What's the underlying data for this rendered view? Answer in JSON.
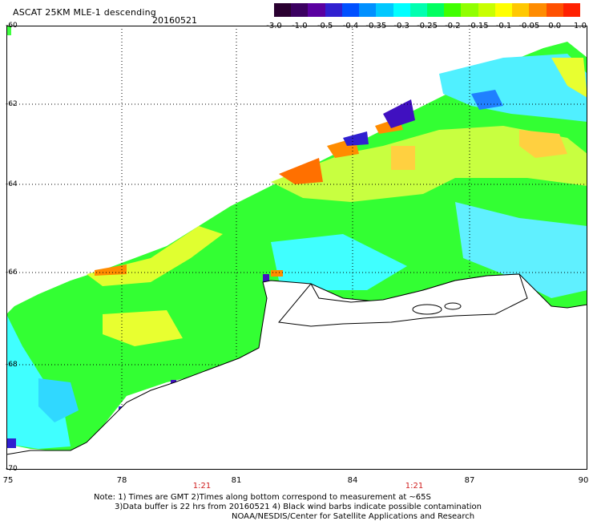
{
  "header": {
    "title": "ASCAT 25KM MLE-1 descending",
    "date": "20160521"
  },
  "colorbar": {
    "colors": [
      "#2a0030",
      "#3b0060",
      "#5a00a0",
      "#3020d0",
      "#0050ff",
      "#0090ff",
      "#00c8ff",
      "#00ffff",
      "#00ffb0",
      "#00ff60",
      "#40ff00",
      "#90ff00",
      "#c8ff00",
      "#ffff00",
      "#ffc800",
      "#ff8c00",
      "#ff5000",
      "#ff2000"
    ],
    "ticks": [
      "-3.0",
      "-1.0",
      "-0.5",
      "-0.4",
      "-0.35",
      "-0.3",
      "-0.25",
      "-0.2",
      "-0.15",
      "-0.1",
      "-0.05",
      "0.0",
      "1.0"
    ]
  },
  "axes": {
    "lat_labels": [
      "-60",
      "-62",
      "-64",
      "-66",
      "-68",
      "-70"
    ],
    "lon_labels": [
      "75",
      "78",
      "81",
      "84",
      "87",
      "90"
    ],
    "time_labels": [
      "1:21",
      "1:21"
    ]
  },
  "notes": {
    "line1": "Note: 1) Times are GMT 2)Times along bottom correspond to measurement at ~65S",
    "line2": "3)Data buffer is 22 hrs from 20160521 4) Black wind barbs indicate possible contamination",
    "line3": "NOAA/NESDIS/Center for Satellite Applications and Research"
  }
}
